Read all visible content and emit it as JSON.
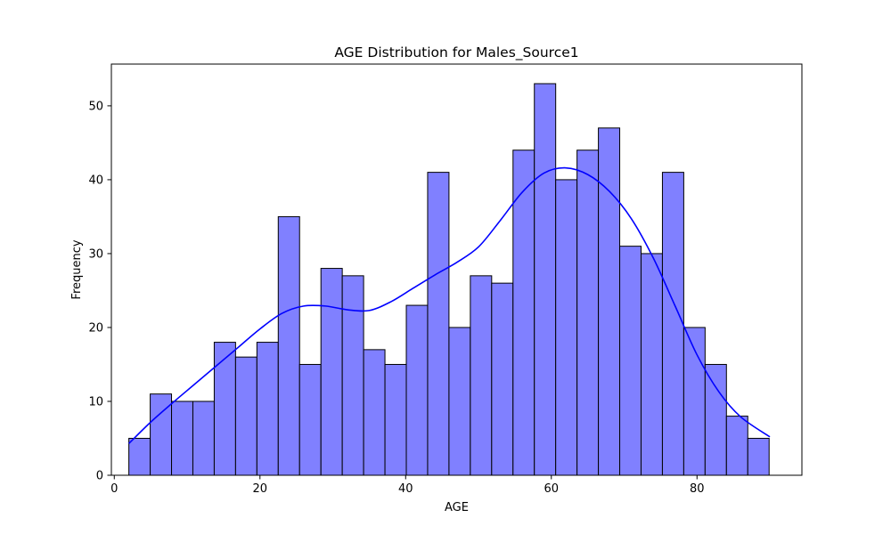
{
  "chart_data": {
    "type": "bar",
    "title": "AGE Distribution for Males_Source1",
    "xlabel": "AGE",
    "ylabel": "Frequency",
    "xlim": [
      -0.4,
      94.4
    ],
    "ylim": [
      0,
      55.65
    ],
    "x_ticks": [
      0,
      20,
      40,
      60,
      80
    ],
    "y_ticks": [
      0,
      10,
      20,
      30,
      40,
      50
    ],
    "bin_start": 2,
    "bin_width": 2.93,
    "values": [
      5,
      11,
      10,
      10,
      18,
      16,
      18,
      35,
      15,
      28,
      27,
      17,
      15,
      23,
      41,
      20,
      27,
      26,
      44,
      53,
      40,
      44,
      47,
      31,
      30,
      41,
      20,
      15,
      8,
      5
    ],
    "bar_color": "#8080ff",
    "bar_edge_color": "#000000",
    "kde": {
      "color": "#0000ff",
      "x": [
        2,
        5,
        8,
        11,
        14,
        17,
        20,
        23,
        26,
        29,
        32,
        35,
        38,
        41,
        44,
        47,
        50,
        53,
        56,
        59,
        62,
        65,
        68,
        71,
        74,
        77,
        80,
        83,
        86,
        90
      ],
      "y": [
        4.3,
        7.2,
        9.8,
        12.3,
        14.8,
        17.3,
        19.8,
        21.9,
        22.9,
        22.9,
        22.4,
        22.3,
        23.5,
        25.3,
        27.1,
        28.8,
        30.9,
        34.5,
        38.3,
        40.9,
        41.6,
        40.7,
        38.4,
        34.7,
        29.4,
        22.9,
        16.3,
        11.3,
        7.9,
        5.2
      ]
    },
    "grid": false,
    "legend": "none"
  }
}
